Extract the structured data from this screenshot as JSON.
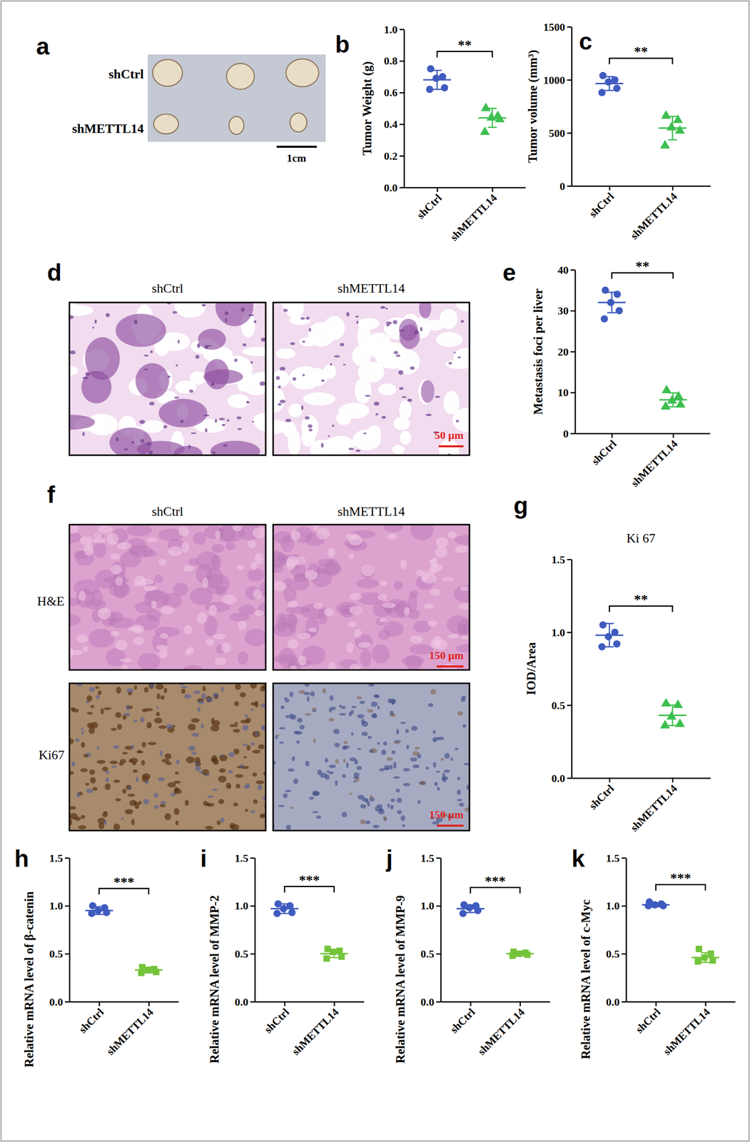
{
  "chart_data": [
    {
      "panel": "b",
      "type": "scatter",
      "ylabel": "Tumor Weight (g)",
      "categories": [
        "shCtrl",
        "shMETTL14"
      ],
      "ylim": [
        0,
        1
      ],
      "yticks": [
        {
          "value": 0,
          "label": "0.0"
        },
        {
          "value": 0.2,
          "label": "0.2"
        },
        {
          "value": 0.4,
          "label": "0.4"
        },
        {
          "value": 0.6,
          "label": "0.6"
        },
        {
          "value": 0.8,
          "label": "0.8"
        },
        {
          "value": 1,
          "label": "1.0"
        }
      ],
      "significance": "**",
      "groups": [
        {
          "color": "#3f5bbf",
          "marker": "circle",
          "values": [
            0.75,
            0.7,
            0.69,
            0.63,
            0.62
          ],
          "mean": 0.68,
          "sd": 0.06
        },
        {
          "color": "#3dbf4f",
          "marker": "triangle",
          "values": [
            0.5,
            0.45,
            0.44,
            0.43,
            0.35
          ],
          "mean": 0.44,
          "sd": 0.06
        }
      ]
    },
    {
      "panel": "c",
      "type": "scatter",
      "ylabel": "Tumor volume (mm³)",
      "categories": [
        "shCtrl",
        "shMETTL14"
      ],
      "ylim": [
        0,
        1500
      ],
      "yticks": [
        0,
        500,
        1000,
        1500
      ],
      "significance": "**",
      "groups": [
        {
          "color": "#3f5bbf",
          "marker": "circle",
          "values": [
            1040,
            1000,
            980,
            920,
            880
          ],
          "mean": 965,
          "sd": 65
        },
        {
          "color": "#3dbf4f",
          "marker": "triangle",
          "values": [
            660,
            620,
            550,
            520,
            380
          ],
          "mean": 545,
          "sd": 110
        }
      ]
    },
    {
      "panel": "e",
      "type": "scatter",
      "ylabel": "Metastasis foci per liver",
      "categories": [
        "shCtrl",
        "shMETTL14"
      ],
      "ylim": [
        0,
        40
      ],
      "yticks": [
        0,
        10,
        20,
        30,
        40
      ],
      "significance": "**",
      "groups": [
        {
          "color": "#3f5bbf",
          "marker": "circle",
          "values": [
            35,
            34,
            32,
            30,
            28
          ],
          "mean": 32,
          "sd": 2.5
        },
        {
          "color": "#3dbf4f",
          "marker": "triangle",
          "values": [
            10.5,
            9,
            8,
            7,
            6.5
          ],
          "mean": 8.2,
          "sd": 1.7
        }
      ]
    },
    {
      "panel": "g",
      "type": "scatter",
      "title": "Ki 67",
      "ylabel": "IOD/Area",
      "categories": [
        "shCtrl",
        "shMETTL14"
      ],
      "ylim": [
        0,
        1.5
      ],
      "yticks": [
        {
          "value": 0,
          "label": "0.0"
        },
        {
          "value": 0.5,
          "label": "0.5"
        },
        {
          "value": 1,
          "label": "1.0"
        },
        {
          "value": 1.5,
          "label": "1.5"
        }
      ],
      "significance": "**",
      "groups": [
        {
          "color": "#3f5bbf",
          "marker": "circle",
          "values": [
            1.05,
            1.0,
            0.97,
            0.92,
            0.9
          ],
          "mean": 0.98,
          "sd": 0.08
        },
        {
          "color": "#3dbf4f",
          "marker": "triangle",
          "values": [
            0.51,
            0.5,
            0.42,
            0.37,
            0.36
          ],
          "mean": 0.43,
          "sd": 0.07
        }
      ]
    },
    {
      "panel": "h",
      "type": "scatter",
      "ylabel": "Relative mRNA level of β-catenin",
      "categories": [
        "shCtrl",
        "shMETTL14"
      ],
      "ylim": [
        0,
        1.5
      ],
      "yticks": [
        {
          "value": 0,
          "label": "0.0"
        },
        {
          "value": 0.5,
          "label": "0.5"
        },
        {
          "value": 1,
          "label": "1.0"
        },
        {
          "value": 1.5,
          "label": "1.5"
        }
      ],
      "significance": "***",
      "groups": [
        {
          "color": "#3f5bbf",
          "marker": "circle",
          "values": [
            1.0,
            0.98,
            0.95,
            0.93,
            0.92
          ],
          "mean": 0.95,
          "sd": 0.04
        },
        {
          "color": "#74c43a",
          "marker": "square",
          "values": [
            0.36,
            0.34,
            0.33,
            0.31,
            0.3
          ],
          "mean": 0.33,
          "sd": 0.03
        }
      ]
    },
    {
      "panel": "i",
      "type": "scatter",
      "ylabel": "Relative mRNA level of MMP-2",
      "categories": [
        "shCtrl",
        "shMETTL14"
      ],
      "ylim": [
        0,
        1.5
      ],
      "yticks": [
        {
          "value": 0,
          "label": "0.0"
        },
        {
          "value": 0.5,
          "label": "0.5"
        },
        {
          "value": 1,
          "label": "1.0"
        },
        {
          "value": 1.5,
          "label": "1.5"
        }
      ],
      "significance": "***",
      "groups": [
        {
          "color": "#3f5bbf",
          "marker": "circle",
          "values": [
            1.02,
            1.0,
            0.97,
            0.93,
            0.92
          ],
          "mean": 0.97,
          "sd": 0.05
        },
        {
          "color": "#74c43a",
          "marker": "square",
          "values": [
            0.55,
            0.53,
            0.52,
            0.47,
            0.45
          ],
          "mean": 0.5,
          "sd": 0.04
        }
      ]
    },
    {
      "panel": "j",
      "type": "scatter",
      "ylabel": "Relative mRNA level of MMP-9",
      "categories": [
        "shCtrl",
        "shMETTL14"
      ],
      "ylim": [
        0,
        1.5
      ],
      "yticks": [
        {
          "value": 0,
          "label": "0.0"
        },
        {
          "value": 0.5,
          "label": "0.5"
        },
        {
          "value": 1,
          "label": "1.0"
        },
        {
          "value": 1.5,
          "label": "1.5"
        }
      ],
      "significance": "***",
      "groups": [
        {
          "color": "#3f5bbf",
          "marker": "circle",
          "values": [
            1.01,
            1.0,
            0.98,
            0.95,
            0.92
          ],
          "mean": 0.97,
          "sd": 0.04
        },
        {
          "color": "#74c43a",
          "marker": "square",
          "values": [
            0.52,
            0.51,
            0.5,
            0.49,
            0.48
          ],
          "mean": 0.5,
          "sd": 0.02
        }
      ]
    },
    {
      "panel": "k",
      "type": "scatter",
      "ylabel": "Relative mRNA level of c-Myc",
      "categories": [
        "shCtrl",
        "shMETTL14"
      ],
      "ylim": [
        0,
        1.5
      ],
      "yticks": [
        {
          "value": 0,
          "label": "0.0"
        },
        {
          "value": 0.5,
          "label": "0.5"
        },
        {
          "value": 1,
          "label": "1.0"
        },
        {
          "value": 1.5,
          "label": "1.5"
        }
      ],
      "significance": "***",
      "groups": [
        {
          "color": "#3f5bbf",
          "marker": "circle",
          "values": [
            1.04,
            1.02,
            1.01,
            1.0,
            1.0
          ],
          "mean": 1.01,
          "sd": 0.02
        },
        {
          "color": "#74c43a",
          "marker": "square",
          "values": [
            0.55,
            0.5,
            0.46,
            0.43,
            0.42
          ],
          "mean": 0.46,
          "sd": 0.05
        }
      ]
    }
  ],
  "image_panels": [
    {
      "panel": "a",
      "row_labels": [
        "shCtrl",
        "shMETTL14"
      ],
      "scale_bar": "1cm"
    },
    {
      "panel": "d",
      "column_labels": [
        "shCtrl",
        "shMETTL14"
      ],
      "scale_bar": "50 μm"
    },
    {
      "panel": "f",
      "column_labels": [
        "shCtrl",
        "shMETTL14"
      ],
      "row_labels": [
        "H&E",
        "Ki67"
      ],
      "scale_bar": "150 μm"
    }
  ]
}
